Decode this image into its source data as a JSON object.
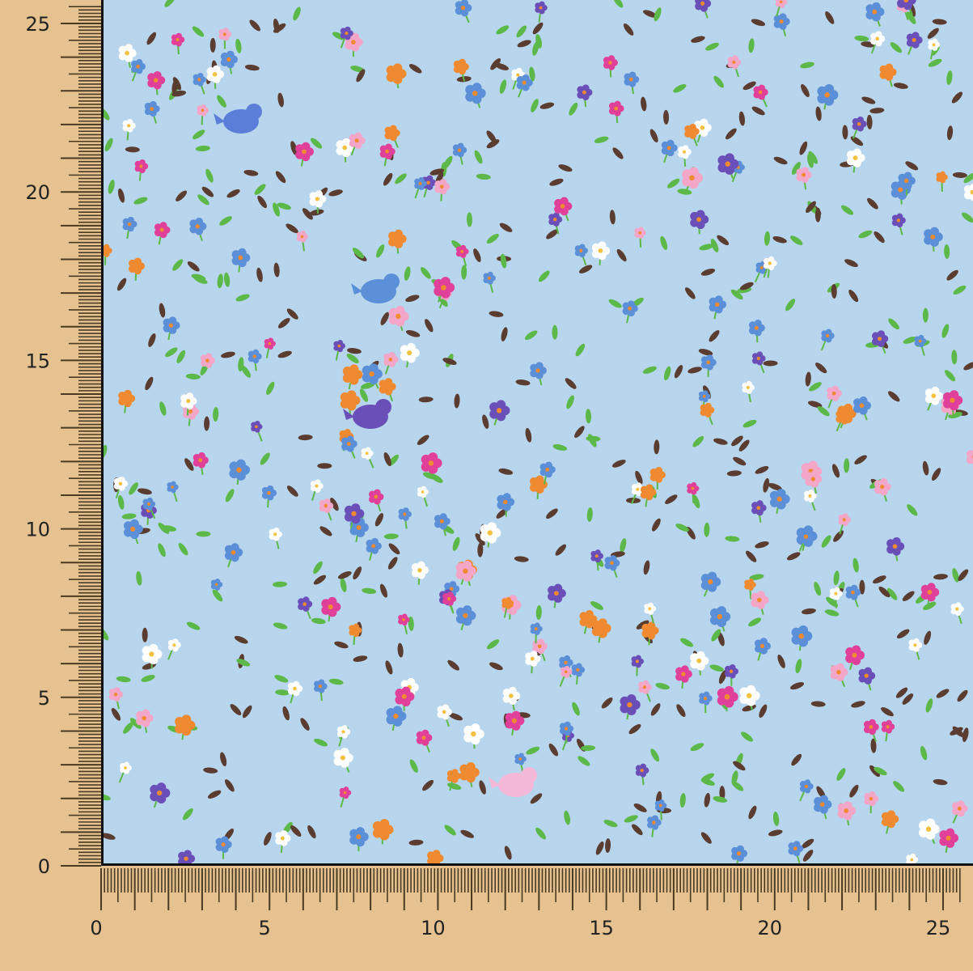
{
  "ruler": {
    "unit": "cm",
    "x_labels": [
      "0",
      "5",
      "10",
      "15",
      "20",
      "25"
    ],
    "y_labels": [
      "0",
      "5",
      "10",
      "15",
      "20",
      "25"
    ],
    "range_cm": [
      0,
      25.5
    ],
    "tick_color": "#4a3a22"
  },
  "fabric": {
    "pattern": "ditsy floral with birds",
    "background_color": "#b7d5ec",
    "motif_colors": [
      "#5b8fd8",
      "#e0409a",
      "#f08a30",
      "#ffffff",
      "#6a4fb8",
      "#f3a6c8",
      "#5cb848",
      "#5a3d30"
    ]
  }
}
